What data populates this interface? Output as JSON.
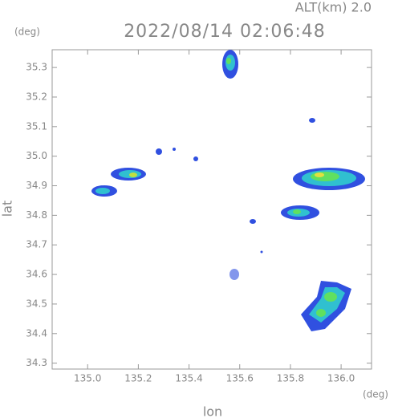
{
  "chart_data": {
    "type": "map",
    "title": "2022/08/14 02:06:48",
    "subtitle": "ALT(km) 2.0",
    "xlabel": "lon",
    "ylabel": "lat",
    "xunit": "(deg)",
    "yunit": "(deg)",
    "xlim": [
      134.86,
      136.12
    ],
    "ylim": [
      34.28,
      35.36
    ],
    "xticks": [
      {
        "value": 135,
        "label": "135.0"
      },
      135.2,
      135.4,
      135.6,
      135.8,
      {
        "value": 136,
        "label": "136.0"
      }
    ],
    "yticks": [
      34.3,
      34.4,
      34.5,
      34.6,
      34.7,
      34.8,
      34.9,
      {
        "value": 35,
        "label": "35.0"
      },
      35.1,
      35.2,
      35.3
    ]
  }
}
